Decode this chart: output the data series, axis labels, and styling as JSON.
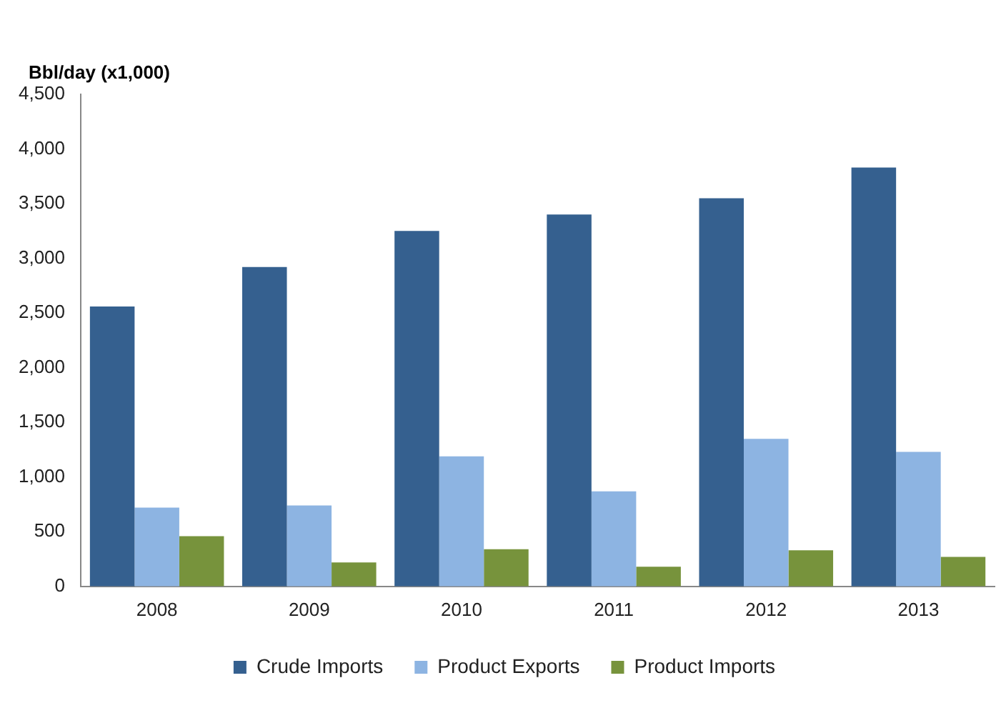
{
  "chart_data": {
    "type": "bar",
    "ylabel": "Bbl/day (x1,000)",
    "categories": [
      "2008",
      "2009",
      "2010",
      "2011",
      "2012",
      "2013"
    ],
    "series": [
      {
        "name": "Crude Imports",
        "color": "#35608f",
        "values": [
          2560,
          2920,
          3250,
          3400,
          3550,
          3830
        ]
      },
      {
        "name": "Product Exports",
        "color": "#8db4e2",
        "values": [
          720,
          740,
          1190,
          870,
          1350,
          1230
        ]
      },
      {
        "name": "Product Imports",
        "color": "#77933c",
        "values": [
          460,
          220,
          340,
          180,
          330,
          270
        ]
      }
    ],
    "ylim": [
      0,
      4500
    ],
    "yticks": [
      0,
      500,
      {
        "value": 1000,
        "label": "1,000"
      },
      {
        "value": 1500,
        "label": "1,500"
      },
      {
        "value": 2000,
        "label": "2,000"
      },
      {
        "value": 2500,
        "label": "2,500"
      },
      {
        "value": 3000,
        "label": "3,000"
      },
      {
        "value": 3500,
        "label": "3,500"
      },
      {
        "value": 4000,
        "label": "4,000"
      },
      {
        "value": 4500,
        "label": "4,500"
      }
    ],
    "grid": false,
    "legend": "bottom"
  }
}
